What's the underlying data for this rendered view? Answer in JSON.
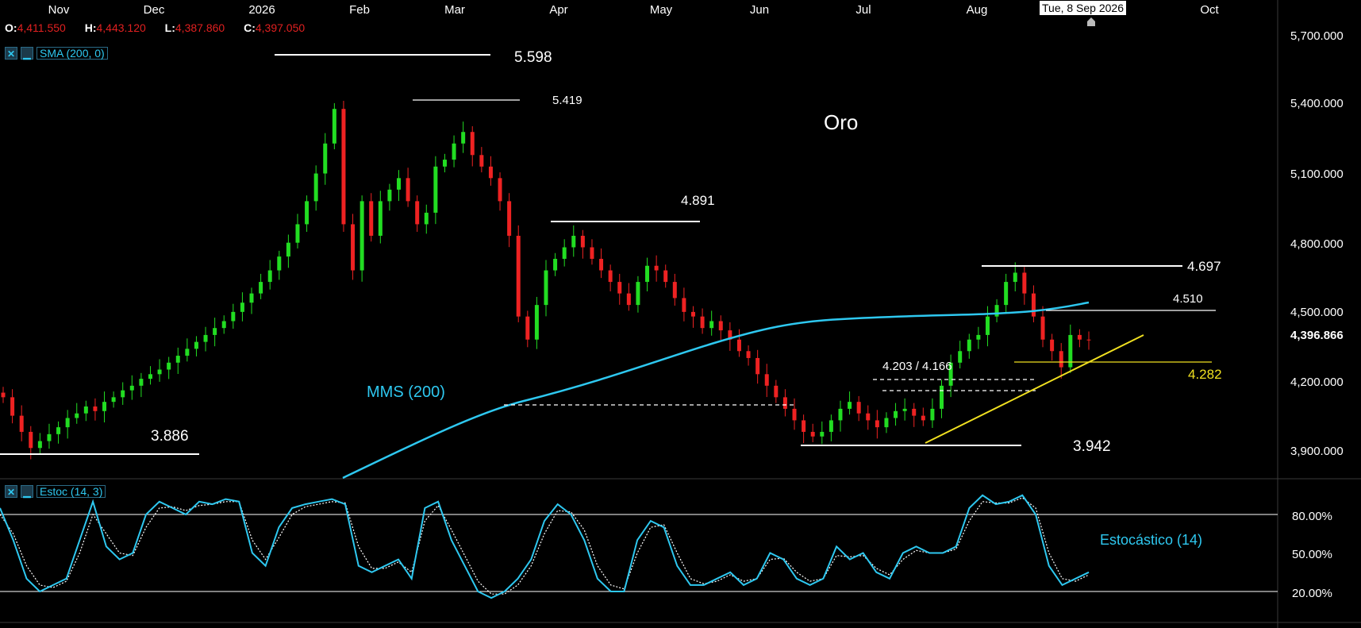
{
  "instrument_title": "Oro",
  "ohlc": {
    "o_label": "O:",
    "o_value": "4,411.550",
    "h_label": "H:",
    "h_value": "4,443.120",
    "l_label": "L:",
    "l_value": "4,387.860",
    "c_label": "C:",
    "c_value": "4,397.050"
  },
  "indicators": {
    "main": {
      "close_icon": "✕",
      "minimize_icon": "▁",
      "name": "SMA (200, 0)"
    },
    "lower": {
      "close_icon": "✕",
      "minimize_icon": "▁",
      "name": "Estoc (14, 3)"
    }
  },
  "crosshair_date": "Tue, 8 Sep 2026",
  "colors": {
    "background": "#000000",
    "up_candle": "#22dd22",
    "down_candle": "#ee2222",
    "sma_line": "#2ec8f0",
    "trendline": "#f0e020",
    "annotation": "#ffffff",
    "stoch_k": "#2ec8f0",
    "stoch_d": "#ffffff"
  },
  "chart_data": [
    {
      "type": "candlestick",
      "x_labels": [
        "Nov",
        "Dec",
        "2026",
        "Feb",
        "Mar",
        "Apr",
        "May",
        "Jun",
        "Jul",
        "Aug",
        "Oct"
      ],
      "y_ticks": [
        "5,700.000",
        "5,400.000",
        "5,100.000",
        "4,800.000",
        "4,500.000",
        "4,200.000",
        "3,900.000"
      ],
      "current_price_label": "4,396.866",
      "annotations": [
        {
          "text": "5.598",
          "value": 5598
        },
        {
          "text": "5.419",
          "value": 5419
        },
        {
          "text": "4.891",
          "value": 4891
        },
        {
          "text": "4.697",
          "value": 4697
        },
        {
          "text": "4.510",
          "value": 4510
        },
        {
          "text": "4.282",
          "value": 4282
        },
        {
          "text": "4.203 / 4.166",
          "value": 4203
        },
        {
          "text": "3.886",
          "value": 3886
        },
        {
          "text": "3.942",
          "value": 3942
        }
      ],
      "series_label": "MMS (200)",
      "closes": [
        4150,
        4070,
        4000,
        3930,
        3960,
        3990,
        4020,
        4060,
        4080,
        4110,
        4090,
        4130,
        4150,
        4180,
        4200,
        4230,
        4250,
        4270,
        4300,
        4330,
        4360,
        4390,
        4420,
        4450,
        4480,
        4520,
        4560,
        4600,
        4650,
        4700,
        4760,
        4820,
        4900,
        5000,
        5120,
        5250,
        5400,
        4900,
        4700,
        5000,
        4850,
        5000,
        5050,
        5100,
        5000,
        4900,
        4950,
        5150,
        5180,
        5250,
        5300,
        5200,
        5150,
        5100,
        5000,
        4850,
        4500,
        4400,
        4550,
        4700,
        4750,
        4800,
        4850,
        4800,
        4750,
        4700,
        4650,
        4600,
        4550,
        4650,
        4720,
        4700,
        4650,
        4580,
        4520,
        4500,
        4450,
        4480,
        4440,
        4400,
        4350,
        4320,
        4250,
        4200,
        4150,
        4100,
        4050,
        4000,
        3980,
        4000,
        4050,
        4100,
        4130,
        4080,
        4050,
        4020,
        4060,
        4090,
        4100,
        4070,
        4050,
        4100,
        4200,
        4300,
        4350,
        4400,
        4420,
        4500,
        4550,
        4650,
        4690,
        4600,
        4500,
        4400,
        4350,
        4280,
        4420,
        4400,
        4397
      ]
    },
    {
      "type": "line",
      "title": "Estocástico (14)",
      "y_ticks": [
        "80.00%",
        "50.00%",
        "20.00%"
      ],
      "ylim": [
        0,
        100
      ],
      "series": [
        {
          "name": "K",
          "values": [
            85,
            60,
            30,
            20,
            25,
            30,
            60,
            90,
            55,
            45,
            50,
            80,
            90,
            85,
            80,
            90,
            88,
            92,
            90,
            50,
            40,
            70,
            85,
            88,
            90,
            92,
            88,
            40,
            35,
            40,
            45,
            30,
            85,
            90,
            60,
            40,
            20,
            15,
            20,
            30,
            45,
            75,
            88,
            80,
            60,
            30,
            20,
            20,
            60,
            75,
            70,
            40,
            25,
            25,
            30,
            35,
            25,
            30,
            50,
            45,
            30,
            25,
            30,
            55,
            45,
            50,
            35,
            30,
            50,
            55,
            50,
            50,
            55,
            85,
            95,
            88,
            90,
            95,
            80,
            40,
            25,
            30,
            35
          ]
        },
        {
          "name": "D",
          "values": [
            80,
            65,
            40,
            25,
            23,
            28,
            50,
            80,
            65,
            50,
            48,
            70,
            85,
            86,
            83,
            87,
            88,
            90,
            90,
            60,
            45,
            62,
            80,
            86,
            88,
            90,
            89,
            55,
            38,
            38,
            43,
            35,
            75,
            87,
            68,
            48,
            28,
            18,
            18,
            25,
            40,
            65,
            83,
            82,
            68,
            40,
            25,
            22,
            50,
            70,
            72,
            50,
            30,
            26,
            28,
            33,
            28,
            30,
            45,
            46,
            35,
            28,
            30,
            48,
            47,
            48,
            38,
            33,
            45,
            52,
            50,
            50,
            53,
            75,
            90,
            89,
            89,
            93,
            85,
            50,
            30,
            28,
            33
          ]
        }
      ]
    }
  ]
}
